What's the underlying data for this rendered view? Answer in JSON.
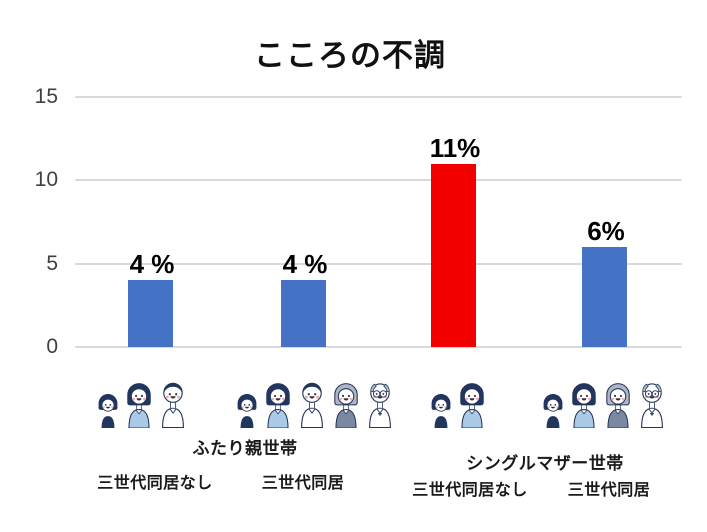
{
  "title": "こころの不調",
  "chart_data": {
    "type": "bar",
    "title": "こころの不調",
    "categories": [
      "ふたり親世帯・三世代同居なし",
      "ふたり親世帯・三世代同居",
      "シングルマザー世帯・三世代同居なし",
      "シングルマザー世帯・三世代同居"
    ],
    "values": [
      4,
      4,
      11,
      6
    ],
    "value_labels": [
      "4 %",
      "4 %",
      "11%",
      "6%"
    ],
    "bar_colors": [
      "#4472C4",
      "#4472C4",
      "#F20000",
      "#4472C4"
    ],
    "xlabel": "",
    "ylabel": "",
    "ylim": [
      0,
      15
    ],
    "yticks": [
      0,
      5,
      10,
      15
    ],
    "grid": true,
    "legend": "none"
  },
  "axis": {
    "ytick_labels": [
      "0",
      "5",
      "10",
      "15"
    ]
  },
  "category_groups": {
    "left_header": "ふたり親世帯",
    "right_header": "シングルマザー世帯",
    "sub_labels": [
      "三世代同居なし",
      "三世代同居",
      "三世代同居なし",
      "三世代同居"
    ]
  },
  "icons": {
    "groups": [
      {
        "name": "family-two-parent-icon",
        "members": [
          "girl",
          "mother",
          "father"
        ]
      },
      {
        "name": "family-two-parent-three-gen-icon",
        "members": [
          "girl",
          "mother",
          "father",
          "grandmother",
          "grandfather"
        ]
      },
      {
        "name": "family-single-mother-icon",
        "members": [
          "girl",
          "mother"
        ]
      },
      {
        "name": "family-single-mother-three-gen-icon",
        "members": [
          "girl",
          "mother",
          "grandmother",
          "grandfather"
        ]
      }
    ]
  },
  "colors": {
    "bar_blue": "#4472C4",
    "bar_red": "#F20000",
    "gridline": "#D9D9D9",
    "tick_text": "#404040",
    "icon_outline": "#25365B",
    "icon_navy": "#21365F",
    "icon_lightblue": "#A9CBE8",
    "icon_gray_hair": "#AEB6C3",
    "icon_gray_top": "#7A89A0",
    "background": "#FFFFFF"
  }
}
